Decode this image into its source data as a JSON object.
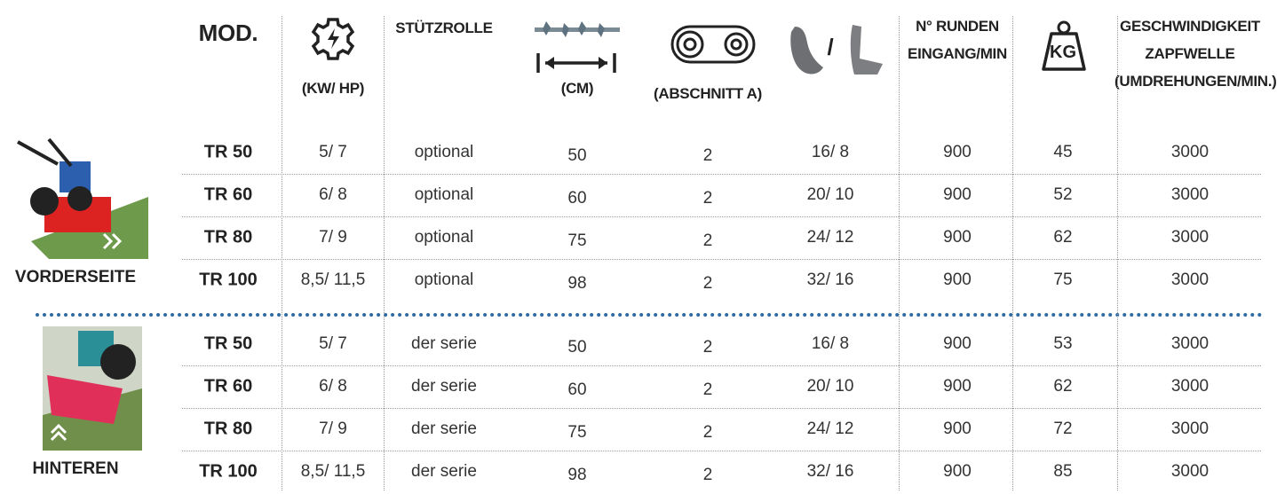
{
  "header": {
    "columns": [
      "MOD.",
      "(KW/ HP)",
      "STÜTZROLLE",
      "(CM)",
      "(ABSCHNITT A)",
      "/",
      "N° RUNDEN EINGANG/MIN",
      "KG",
      "GESCHWINDIGKEIT ZAPFWELLE (UMDREHUNGEN/MIN.)"
    ]
  },
  "groups": [
    {
      "label": "VORDERSEITE",
      "rows": [
        [
          "TR 50",
          "5/ 7",
          "optional",
          50,
          2,
          "16/ 8",
          900,
          45,
          3000
        ],
        [
          "TR 60",
          "6/ 8",
          "optional",
          60,
          2,
          "20/ 10",
          900,
          52,
          3000
        ],
        [
          "TR 80",
          "7/ 9",
          "optional",
          75,
          2,
          "24/ 12",
          900,
          62,
          3000
        ],
        [
          "TR 100",
          "8,5/ 11,5",
          "optional",
          98,
          2,
          "32/ 16",
          900,
          75,
          3000
        ]
      ]
    },
    {
      "label": "HINTEREN",
      "rows": [
        [
          "TR 50",
          "5/ 7",
          "der serie",
          50,
          2,
          "16/ 8",
          900,
          53,
          3000
        ],
        [
          "TR 60",
          "6/ 8",
          "der serie",
          60,
          2,
          "20/ 10",
          900,
          62,
          3000
        ],
        [
          "TR 80",
          "7/ 9",
          "der serie",
          75,
          2,
          "24/ 12",
          900,
          72,
          3000
        ],
        [
          "TR 100",
          "8,5/ 11,5",
          "der serie",
          98,
          2,
          "32/ 16",
          900,
          85,
          3000
        ]
      ]
    }
  ]
}
